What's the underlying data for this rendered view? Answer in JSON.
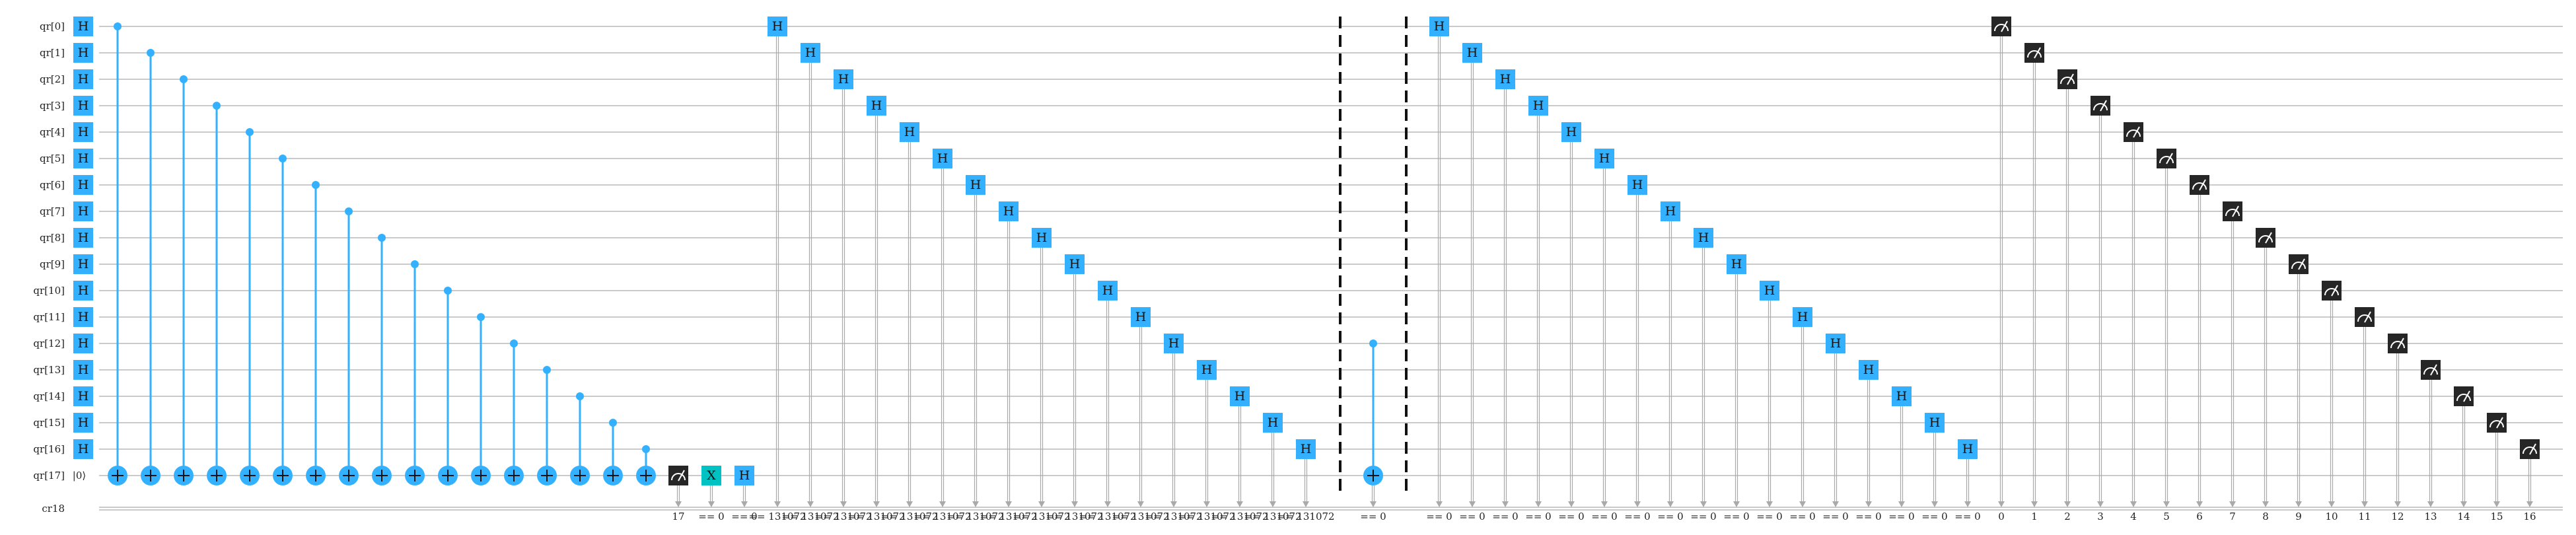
{
  "circuit": {
    "qubit_prefix": "qr",
    "num_qubits": 18,
    "init_state": "|0⟩",
    "classical_label": "cr18",
    "gate_labels": {
      "hadamard": "H",
      "pauli_x": "X"
    },
    "colors": {
      "gate": "#33b1ff",
      "x_gate": "#00c2c2",
      "measure": "#262626",
      "wire": "#aaaaaa",
      "barrier": "#111111",
      "text": "#111111"
    },
    "icons": {
      "measure": "meter-icon",
      "target": "cnot-target-icon",
      "control": "control-dot-icon"
    },
    "conditions": {
      "c17": "17",
      "cx": "== 0",
      "ch17": "== 0",
      "ch_big": "== 131072",
      "cnot2": "== 0",
      "ch_eq0": "== 0"
    },
    "measure_bits": [
      "0",
      "1",
      "2",
      "3",
      "4",
      "5",
      "6",
      "7",
      "8",
      "9",
      "10",
      "11",
      "12",
      "13",
      "14",
      "15",
      "16"
    ]
  }
}
